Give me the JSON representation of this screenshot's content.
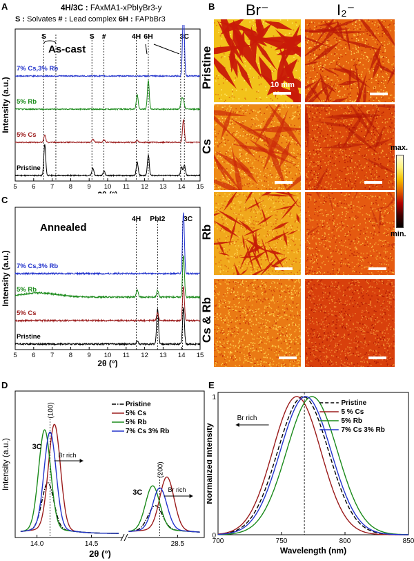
{
  "panels": {
    "A": {
      "letter": "A"
    },
    "B": {
      "letter": "B"
    },
    "C": {
      "letter": "C"
    },
    "D": {
      "letter": "D"
    },
    "E": {
      "letter": "E"
    }
  },
  "header": {
    "line1_bold": "4H/3C :",
    "line1_formula": "FAxMA1-xPbIyBr3-y",
    "line2_s": "S :",
    "line2_s_text": "Solvates",
    "line2_hash": "# :",
    "line2_hash_text": "Lead complex",
    "line2_6h": "6H :",
    "line2_6h_text": "FAPbBr3"
  },
  "colors": {
    "pristine": "#000000",
    "cs": "#9b1b1b",
    "rb": "#1a8a1a",
    "csrb": "#2233cc"
  },
  "map": {
    "col_labels": [
      "Br⁻",
      "I₂⁻"
    ],
    "row_labels": [
      "Pristine",
      "Cs",
      "Rb",
      "Cs & Rb"
    ],
    "scale_label": "10 mm",
    "colorbar_max": "max.",
    "colorbar_min": "min."
  },
  "chart_data": [
    {
      "panel": "A",
      "type": "line",
      "title": "As-cast",
      "xlabel": "2θ (°)",
      "ylabel": "Intensity (a.u.)",
      "xlim": [
        5,
        15
      ],
      "xticks": [
        5,
        6,
        7,
        8,
        9,
        10,
        11,
        12,
        13,
        14,
        15
      ],
      "series": [
        {
          "name": "Pristine",
          "color": "#000000",
          "offset": 0,
          "peaks": [
            [
              6.6,
              0.75
            ],
            [
              9.2,
              0.18
            ],
            [
              9.8,
              0.12
            ],
            [
              11.6,
              0.32
            ],
            [
              12.2,
              0.5
            ],
            [
              14.0,
              0.2
            ],
            [
              14.15,
              0.25
            ]
          ]
        },
        {
          "name": "5% Cs",
          "color": "#9b1b1b",
          "offset": 1,
          "peaks": [
            [
              6.6,
              0.18
            ],
            [
              9.2,
              0.08
            ],
            [
              9.8,
              0.06
            ],
            [
              11.6,
              0.05
            ],
            [
              14.1,
              0.55
            ]
          ]
        },
        {
          "name": "5% Rb",
          "color": "#1a8a1a",
          "offset": 2,
          "peaks": [
            [
              11.6,
              0.35
            ],
            [
              12.2,
              0.7
            ],
            [
              14.0,
              0.25
            ],
            [
              14.1,
              0.2
            ]
          ]
        },
        {
          "name": "7% Cs,3% Rb",
          "color": "#2233cc",
          "offset": 3,
          "peaks": [
            [
              14.1,
              1.6
            ]
          ]
        }
      ],
      "markers": [
        {
          "x": 6.55,
          "label": "S"
        },
        {
          "x": 7.2,
          "label": ""
        },
        {
          "x": 9.15,
          "label": "S"
        },
        {
          "x": 9.8,
          "label": "#"
        },
        {
          "x": 11.55,
          "label": "4H"
        },
        {
          "x": 12.2,
          "label": "6H"
        },
        {
          "x": 13.95,
          "label": ""
        },
        {
          "x": 14.15,
          "label": "3C"
        }
      ]
    },
    {
      "panel": "C",
      "type": "line",
      "title": "Annealed",
      "xlabel": "2θ (°)",
      "ylabel": "Intensity (a.u.)",
      "xlim": [
        5,
        15
      ],
      "xticks": [
        5,
        6,
        7,
        8,
        9,
        10,
        11,
        12,
        13,
        14,
        15
      ],
      "series": [
        {
          "name": "Pristine",
          "color": "#000000",
          "offset": 0,
          "peaks": [
            [
              11.6,
              0.08
            ],
            [
              12.7,
              0.95
            ],
            [
              14.1,
              0.95
            ]
          ]
        },
        {
          "name": "5% Cs",
          "color": "#9b1b1b",
          "offset": 1,
          "peaks": [
            [
              12.7,
              0.2
            ],
            [
              14.1,
              0.9
            ]
          ]
        },
        {
          "name": "5% Rb",
          "color": "#1a8a1a",
          "offset": 2,
          "peaks": [
            [
              11.6,
              0.2
            ],
            [
              12.7,
              0.18
            ],
            [
              14.1,
              1.1
            ]
          ]
        },
        {
          "name": "7% Cs,3% Rb",
          "color": "#2233cc",
          "offset": 3,
          "peaks": [
            [
              14.1,
              1.6
            ]
          ]
        }
      ],
      "markers": [
        {
          "x": 11.55,
          "label": "4H"
        },
        {
          "x": 12.7,
          "label": "PbI2"
        },
        {
          "x": 14.05,
          "label": "3C"
        }
      ]
    },
    {
      "panel": "D",
      "type": "line",
      "xlabel": "2θ (°)",
      "ylabel": "Intensity (a.u.)",
      "xticks": [
        "14.0",
        "14.5",
        "28.5"
      ],
      "legend": [
        "Pristine",
        "5% Cs",
        "5% Rb",
        "7% Cs 3% Rb"
      ],
      "annotations": [
        "3C",
        "(100)",
        "Br rich",
        "3C",
        "(200)",
        "Br rich"
      ],
      "series": [
        {
          "name": "Pristine",
          "color": "#000000",
          "dash": "dashdot",
          "peak1": [
            14.1,
            0.42
          ],
          "peak2": [
            28.25,
            0.22
          ]
        },
        {
          "name": "5% Cs",
          "color": "#9b1b1b",
          "peak1": [
            14.16,
            0.95
          ],
          "peak2": [
            28.38,
            0.48
          ]
        },
        {
          "name": "5% Rb",
          "color": "#1a8a1a",
          "peak1": [
            14.07,
            0.9
          ],
          "peak2": [
            28.22,
            0.4
          ]
        },
        {
          "name": "7% Cs 3% Rb",
          "color": "#2233cc",
          "peak1": [
            14.12,
            0.88
          ],
          "peak2": [
            28.3,
            0.38
          ]
        }
      ]
    },
    {
      "panel": "E",
      "type": "line",
      "xlabel": "Wavelength (nm)",
      "ylabel": "Normalized Intensity",
      "xlim": [
        700,
        850
      ],
      "ylim": [
        0,
        1
      ],
      "xticks": [
        700,
        750,
        800,
        850
      ],
      "yticks": [
        0,
        1
      ],
      "legend": [
        "Pristine",
        "5 % Cs",
        "5% Rb",
        "7% Cs 3% Rb"
      ],
      "annotation": "Br rich",
      "ref_line": 768,
      "series": [
        {
          "name": "Pristine",
          "color": "#000000",
          "dash": "dashed",
          "center": 767,
          "width": 20
        },
        {
          "name": "5 % Cs",
          "color": "#9b1b1b",
          "center": 762,
          "width": 19
        },
        {
          "name": "5% Rb",
          "color": "#1a8a1a",
          "center": 774,
          "width": 20
        },
        {
          "name": "7% Cs 3% Rb",
          "color": "#2233cc",
          "center": 769,
          "width": 20
        }
      ]
    }
  ]
}
